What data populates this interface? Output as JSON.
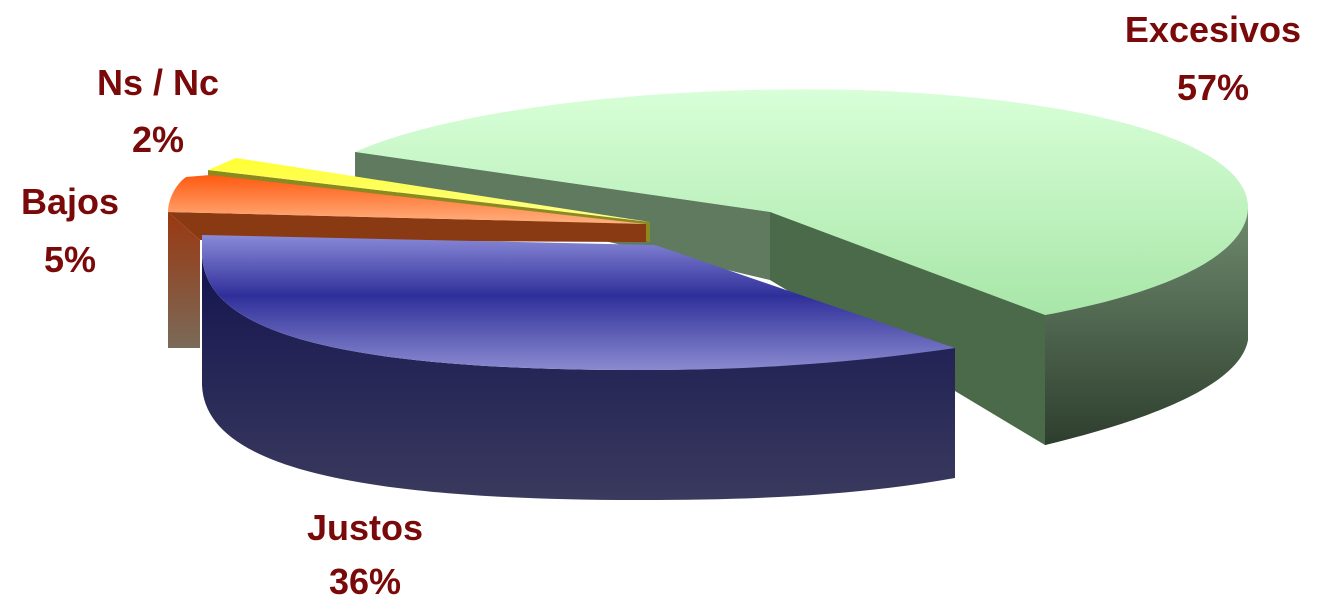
{
  "chart_data": {
    "type": "pie",
    "style": "3d-exploded",
    "slices": [
      {
        "label": "Excesivos",
        "value": 57,
        "value_label": "57%",
        "color": "#c8f7c8",
        "side_color": "#4f6a4f"
      },
      {
        "label": "Justos",
        "value": 36,
        "value_label": "36%",
        "color": "#3a3aa8",
        "side_color": "#1e1e55"
      },
      {
        "label": "Bajos",
        "value": 5,
        "value_label": "5%",
        "color": "#ff7a2a",
        "side_color": "#8a3a12"
      },
      {
        "label": "Ns / Nc",
        "value": 2,
        "value_label": "2%",
        "color": "#ffff40",
        "side_color": "#8a8a20"
      }
    ],
    "label_color": "#7a0a0a"
  }
}
